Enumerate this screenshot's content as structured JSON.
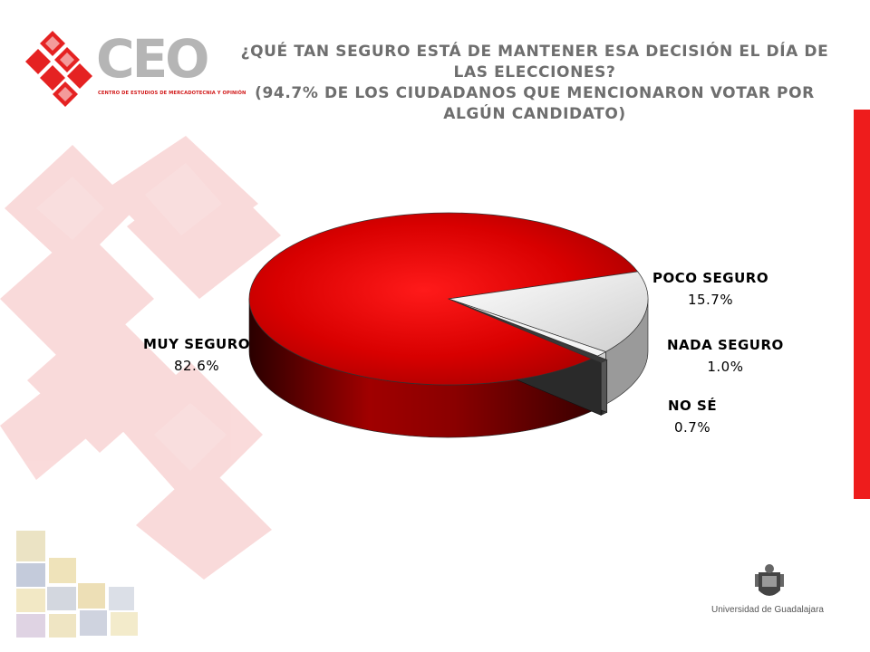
{
  "logo": {
    "name": "CEO",
    "tagline": "CENTRO DE ESTUDIOS DE MERCADOTECNIA Y OPINIÓN"
  },
  "title": {
    "line1": "¿QUÉ TAN SEGURO ESTÁ DE MANTENER ESA DECISIÓN EL DÍA DE LAS ELECCIONES?",
    "line2": "(94.7% DE LOS CIUDADANOS QUE MENCIONARON VOTAR POR ALGÚN CANDIDATO)"
  },
  "colors": {
    "accent_red": "#ee1c1c",
    "title_gray": "#6e6e6e",
    "slice_main": "#d40000",
    "slice_light": "#e6e6e6",
    "slice_dark": "#3a3a3a"
  },
  "chart_data": {
    "type": "pie",
    "style": "3d",
    "categories": [
      "MUY SEGURO",
      "POCO SEGURO",
      "NADA SEGURO",
      "NO SÉ"
    ],
    "values": [
      82.6,
      15.7,
      1.0,
      0.7
    ],
    "value_labels": [
      "82.6%",
      "15.7%",
      "1.0%",
      "0.7%"
    ],
    "exploded": "NO SÉ"
  },
  "footer": {
    "university": "Universidad de Guadalajara"
  }
}
